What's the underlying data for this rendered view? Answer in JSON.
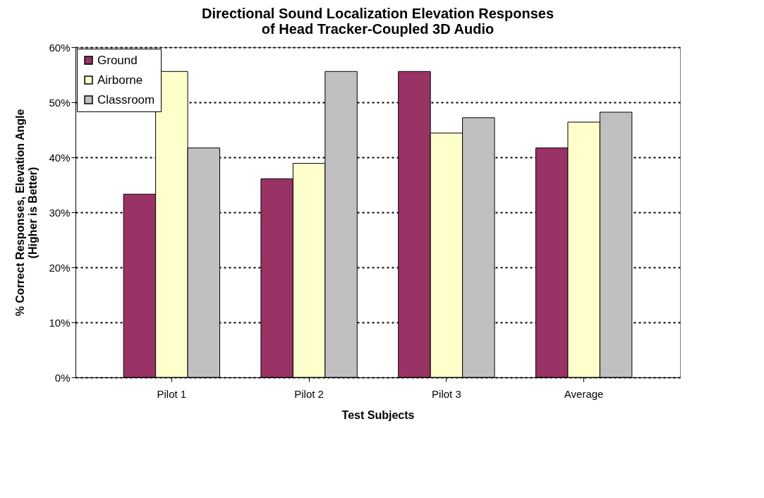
{
  "chart_data": {
    "type": "bar",
    "title": "Directional Sound Localization Elevation Responses\nof Head Tracker-Coupled 3D Audio",
    "xlabel": "Test Subjects",
    "ylabel": "% Correct Responses, Elevation Angle\n(Higher is Better)",
    "categories": [
      "Pilot 1",
      "Pilot 2",
      "Pilot 3",
      "Average"
    ],
    "series": [
      {
        "name": "Ground",
        "color": "#993366",
        "values": [
          33.3,
          36.1,
          55.6,
          41.7
        ]
      },
      {
        "name": "Airborne",
        "color": "#ffffcc",
        "values": [
          55.6,
          38.9,
          44.4,
          46.4
        ]
      },
      {
        "name": "Classroom",
        "color": "#c0c0c0",
        "values": [
          41.7,
          55.6,
          47.2,
          48.2
        ]
      }
    ],
    "ylim": [
      0,
      60
    ],
    "yticks": [
      {
        "value": 0,
        "label": "0%"
      },
      {
        "value": 10,
        "label": "10%"
      },
      {
        "value": 20,
        "label": "20%"
      },
      {
        "value": 30,
        "label": "30%"
      },
      {
        "value": 40,
        "label": "40%"
      },
      {
        "value": 50,
        "label": "50%"
      },
      {
        "value": 60,
        "label": "60%"
      }
    ],
    "grid": "y",
    "legend": "top left"
  }
}
